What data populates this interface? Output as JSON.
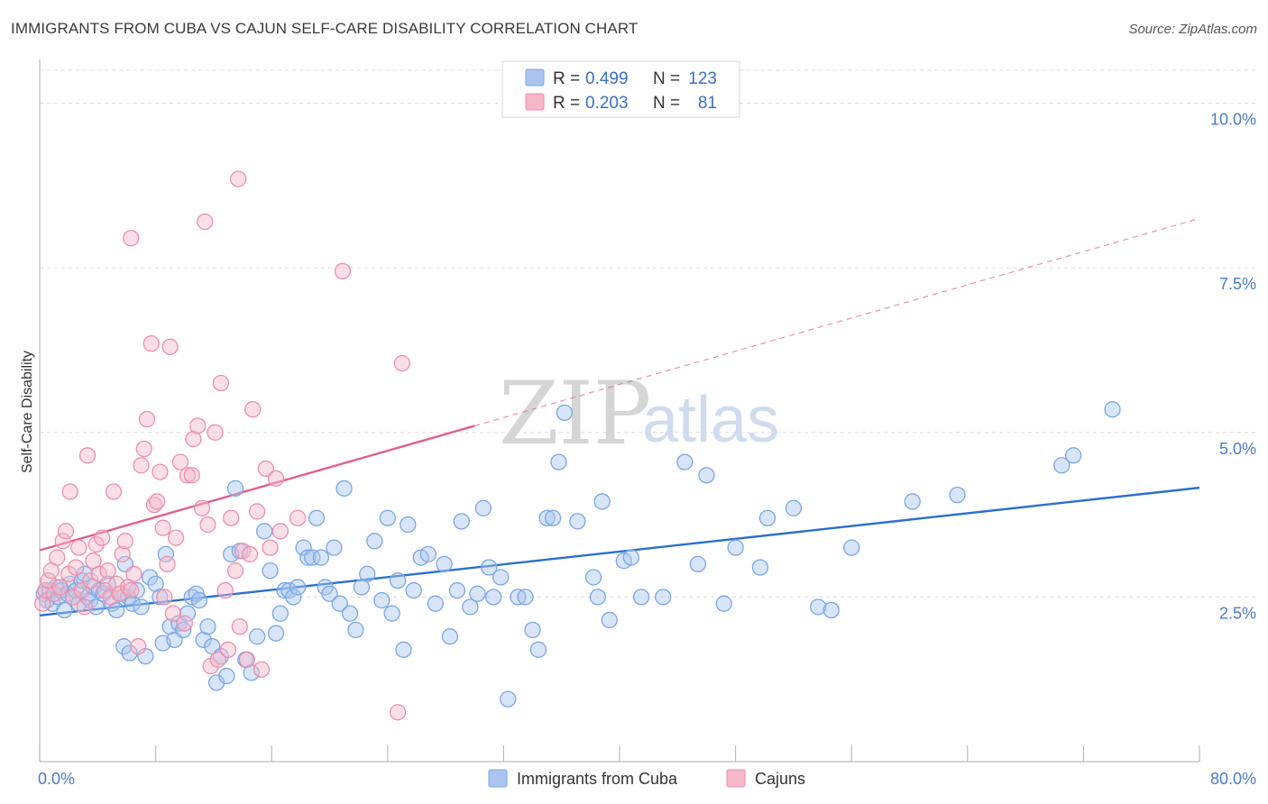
{
  "header": {
    "title": "IMMIGRANTS FROM CUBA VS CAJUN SELF-CARE DISABILITY CORRELATION CHART",
    "source": "Source: ZipAtlas.com"
  },
  "watermark": {
    "zip": "ZIP",
    "atlas": "atlas"
  },
  "legend": {
    "rows": [
      {
        "r_label": "R =",
        "r_value": "0.499",
        "n_label": "N =",
        "n_value": "123",
        "color": "#a9c5ef"
      },
      {
        "r_label": "R =",
        "r_value": "0.203",
        "n_label": "N =",
        "n_value": "81",
        "color": "#f5b7c9"
      }
    ]
  },
  "bottom_legend": {
    "items": [
      {
        "label": "Immigrants from Cuba",
        "color": "#a9c5ef"
      },
      {
        "label": "Cajuns",
        "color": "#f5b7c9"
      }
    ]
  },
  "chart_data": {
    "type": "scatter",
    "ylabel": "Self-Care Disability",
    "xlim": [
      0,
      80
    ],
    "ylim": [
      0,
      10.5
    ],
    "x_tick_labels": [
      {
        "value": 0,
        "label": "0.0%"
      },
      {
        "value": 80,
        "label": "80.0%"
      }
    ],
    "y_ticks": [
      {
        "value": 2.5,
        "label": "2.5%"
      },
      {
        "value": 5.0,
        "label": "5.0%"
      },
      {
        "value": 7.5,
        "label": "7.5%"
      },
      {
        "value": 10.0,
        "label": "10.0%"
      }
    ],
    "grid": true,
    "series": [
      {
        "name": "Immigrants from Cuba",
        "color": "#7aa6e6",
        "fill": "#a9c5ef",
        "line_color": "#2a6fd0",
        "trend": {
          "x1": 0,
          "y1": 2.22,
          "x2": 80,
          "y2": 4.16
        },
        "points": [
          [
            0.3,
            2.55
          ],
          [
            0.5,
            2.45
          ],
          [
            0.7,
            2.6
          ],
          [
            0.9,
            2.4
          ],
          [
            1.1,
            2.65
          ],
          [
            1.3,
            2.5
          ],
          [
            1.5,
            2.6
          ],
          [
            1.7,
            2.3
          ],
          [
            1.9,
            2.55
          ],
          [
            2.1,
            2.7
          ],
          [
            2.3,
            2.5
          ],
          [
            2.5,
            2.6
          ],
          [
            2.7,
            2.4
          ],
          [
            2.9,
            2.75
          ],
          [
            3.1,
            2.85
          ],
          [
            3.3,
            2.5
          ],
          [
            3.5,
            2.45
          ],
          [
            3.7,
            2.65
          ],
          [
            3.9,
            2.35
          ],
          [
            4.1,
            2.6
          ],
          [
            4.4,
            2.55
          ],
          [
            4.7,
            2.7
          ],
          [
            5.0,
            2.4
          ],
          [
            5.3,
            2.3
          ],
          [
            5.6,
            2.55
          ],
          [
            5.9,
            3.0
          ],
          [
            6.1,
            2.5
          ],
          [
            6.4,
            2.4
          ],
          [
            6.7,
            2.6
          ],
          [
            7.0,
            2.35
          ],
          [
            5.8,
            1.75
          ],
          [
            6.2,
            1.65
          ],
          [
            7.3,
            1.6
          ],
          [
            7.6,
            2.8
          ],
          [
            8.0,
            2.7
          ],
          [
            8.3,
            2.5
          ],
          [
            8.5,
            1.8
          ],
          [
            8.7,
            3.15
          ],
          [
            9.0,
            2.05
          ],
          [
            9.3,
            1.85
          ],
          [
            9.6,
            2.1
          ],
          [
            9.9,
            2.0
          ],
          [
            10.2,
            2.25
          ],
          [
            10.5,
            2.5
          ],
          [
            10.8,
            2.55
          ],
          [
            11.0,
            2.45
          ],
          [
            11.3,
            1.85
          ],
          [
            11.6,
            2.05
          ],
          [
            11.9,
            1.75
          ],
          [
            12.2,
            1.2
          ],
          [
            12.5,
            1.6
          ],
          [
            12.9,
            1.3
          ],
          [
            13.2,
            3.15
          ],
          [
            13.5,
            4.15
          ],
          [
            13.8,
            3.2
          ],
          [
            14.2,
            1.55
          ],
          [
            14.6,
            1.35
          ],
          [
            15.0,
            1.9
          ],
          [
            15.5,
            3.5
          ],
          [
            15.9,
            2.9
          ],
          [
            16.3,
            1.95
          ],
          [
            16.6,
            2.25
          ],
          [
            16.9,
            2.6
          ],
          [
            17.2,
            2.6
          ],
          [
            17.5,
            2.5
          ],
          [
            17.8,
            2.65
          ],
          [
            18.2,
            3.25
          ],
          [
            18.5,
            3.1
          ],
          [
            18.8,
            3.1
          ],
          [
            19.1,
            3.7
          ],
          [
            19.4,
            3.1
          ],
          [
            19.7,
            2.65
          ],
          [
            20.0,
            2.55
          ],
          [
            20.3,
            3.25
          ],
          [
            20.7,
            2.4
          ],
          [
            21.0,
            4.15
          ],
          [
            21.4,
            2.25
          ],
          [
            21.8,
            2.0
          ],
          [
            22.2,
            2.65
          ],
          [
            22.6,
            2.85
          ],
          [
            23.1,
            3.35
          ],
          [
            23.6,
            2.45
          ],
          [
            24.0,
            3.7
          ],
          [
            24.3,
            2.25
          ],
          [
            24.7,
            2.75
          ],
          [
            25.1,
            1.7
          ],
          [
            25.4,
            3.6
          ],
          [
            25.8,
            2.6
          ],
          [
            26.3,
            3.1
          ],
          [
            26.8,
            3.15
          ],
          [
            27.3,
            2.4
          ],
          [
            27.9,
            3.0
          ],
          [
            28.3,
            1.9
          ],
          [
            28.8,
            2.6
          ],
          [
            29.1,
            3.65
          ],
          [
            29.7,
            2.35
          ],
          [
            30.2,
            2.55
          ],
          [
            30.6,
            3.85
          ],
          [
            31.0,
            2.95
          ],
          [
            31.3,
            2.5
          ],
          [
            31.8,
            2.8
          ],
          [
            32.3,
            0.95
          ],
          [
            33.0,
            2.5
          ],
          [
            33.5,
            2.5
          ],
          [
            34.0,
            2.0
          ],
          [
            34.4,
            1.7
          ],
          [
            35.0,
            3.7
          ],
          [
            35.4,
            3.7
          ],
          [
            35.8,
            4.55
          ],
          [
            36.2,
            5.3
          ],
          [
            37.1,
            3.65
          ],
          [
            38.2,
            2.8
          ],
          [
            38.5,
            2.5
          ],
          [
            38.8,
            3.95
          ],
          [
            39.3,
            2.15
          ],
          [
            40.3,
            3.05
          ],
          [
            40.8,
            3.1
          ],
          [
            41.5,
            2.5
          ],
          [
            43.0,
            2.5
          ],
          [
            44.5,
            4.55
          ],
          [
            45.4,
            3.0
          ],
          [
            46.0,
            4.35
          ],
          [
            47.2,
            2.4
          ],
          [
            48.0,
            3.25
          ],
          [
            49.7,
            2.95
          ],
          [
            50.2,
            3.7
          ],
          [
            52.0,
            3.85
          ],
          [
            53.7,
            2.35
          ],
          [
            54.6,
            2.3
          ],
          [
            56.0,
            3.25
          ],
          [
            60.2,
            3.95
          ],
          [
            63.3,
            4.05
          ],
          [
            70.5,
            4.5
          ],
          [
            71.3,
            4.65
          ],
          [
            74.0,
            5.35
          ]
        ]
      },
      {
        "name": "Cajuns",
        "color": "#ee8eab",
        "fill": "#f5b7c9",
        "line_color": "#e0608a",
        "trend": {
          "x1": 0,
          "y1": 3.21,
          "x2": 30,
          "y2": 5.1
        },
        "trend_dashed": {
          "x1": 30,
          "y1": 5.1,
          "x2": 80,
          "y2": 8.25
        },
        "points": [
          [
            0.2,
            2.4
          ],
          [
            0.4,
            2.6
          ],
          [
            0.6,
            2.75
          ],
          [
            0.8,
            2.9
          ],
          [
            1.0,
            2.55
          ],
          [
            1.2,
            3.1
          ],
          [
            1.4,
            2.65
          ],
          [
            1.6,
            3.35
          ],
          [
            1.8,
            3.5
          ],
          [
            2.0,
            2.85
          ],
          [
            2.1,
            4.1
          ],
          [
            2.3,
            2.5
          ],
          [
            2.5,
            2.95
          ],
          [
            2.7,
            3.25
          ],
          [
            2.9,
            2.6
          ],
          [
            3.1,
            2.35
          ],
          [
            3.3,
            4.65
          ],
          [
            3.5,
            2.75
          ],
          [
            3.7,
            3.05
          ],
          [
            3.9,
            3.3
          ],
          [
            4.1,
            2.85
          ],
          [
            4.3,
            3.4
          ],
          [
            4.5,
            2.6
          ],
          [
            4.7,
            2.9
          ],
          [
            4.9,
            2.5
          ],
          [
            5.1,
            4.1
          ],
          [
            5.3,
            2.7
          ],
          [
            5.5,
            2.55
          ],
          [
            5.7,
            3.15
          ],
          [
            5.9,
            3.35
          ],
          [
            6.1,
            2.65
          ],
          [
            6.3,
            2.6
          ],
          [
            6.5,
            2.85
          ],
          [
            6.8,
            1.75
          ],
          [
            7.0,
            4.5
          ],
          [
            7.2,
            4.75
          ],
          [
            7.4,
            5.2
          ],
          [
            7.7,
            6.35
          ],
          [
            7.9,
            3.9
          ],
          [
            8.1,
            3.95
          ],
          [
            8.3,
            4.4
          ],
          [
            8.5,
            3.55
          ],
          [
            8.6,
            2.5
          ],
          [
            8.8,
            3.0
          ],
          [
            9.0,
            6.3
          ],
          [
            9.2,
            2.25
          ],
          [
            9.4,
            3.4
          ],
          [
            9.7,
            4.55
          ],
          [
            10.0,
            2.1
          ],
          [
            10.2,
            4.35
          ],
          [
            10.5,
            4.35
          ],
          [
            10.6,
            4.9
          ],
          [
            10.9,
            5.1
          ],
          [
            11.2,
            3.85
          ],
          [
            11.4,
            8.2
          ],
          [
            11.6,
            3.6
          ],
          [
            11.8,
            1.45
          ],
          [
            12.1,
            5.0
          ],
          [
            12.3,
            1.55
          ],
          [
            12.5,
            5.75
          ],
          [
            12.8,
            2.6
          ],
          [
            13.0,
            1.7
          ],
          [
            13.2,
            3.7
          ],
          [
            13.5,
            2.9
          ],
          [
            13.8,
            2.05
          ],
          [
            14.0,
            3.2
          ],
          [
            14.3,
            1.55
          ],
          [
            14.5,
            3.15
          ],
          [
            14.7,
            5.35
          ],
          [
            15.0,
            3.8
          ],
          [
            15.3,
            1.4
          ],
          [
            15.6,
            4.45
          ],
          [
            15.9,
            3.25
          ],
          [
            16.3,
            4.3
          ],
          [
            16.6,
            3.5
          ],
          [
            13.7,
            8.85
          ],
          [
            6.3,
            7.95
          ],
          [
            20.9,
            7.45
          ],
          [
            24.7,
            0.75
          ],
          [
            25.0,
            6.05
          ],
          [
            17.8,
            3.7
          ]
        ]
      }
    ]
  }
}
